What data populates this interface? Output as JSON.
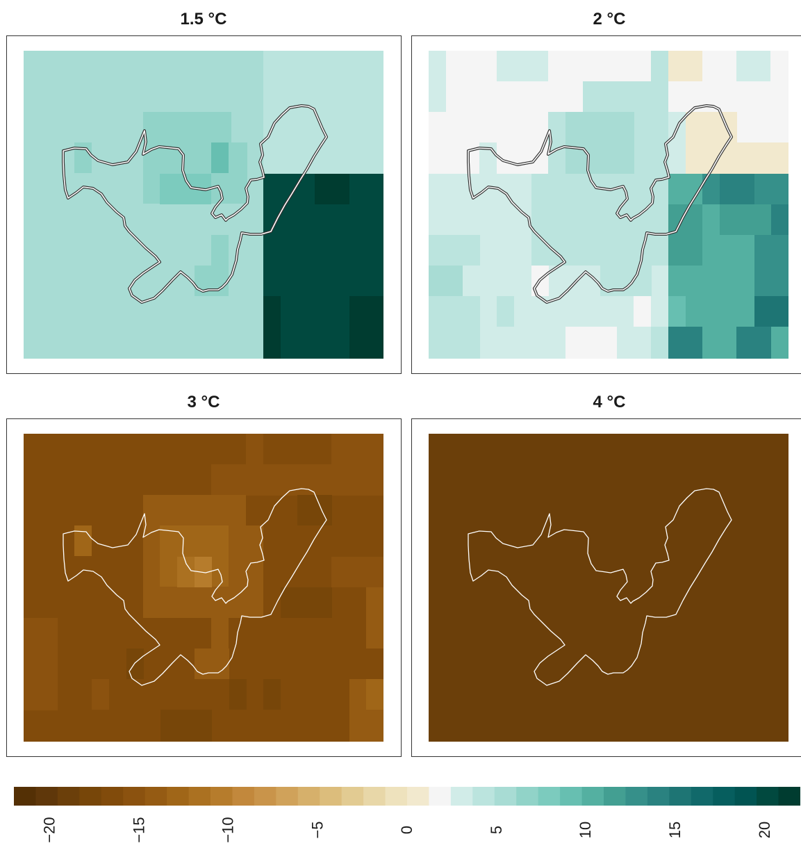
{
  "panels": [
    {
      "title": "1.5 °C"
    },
    {
      "title": "2 °C"
    },
    {
      "title": "3 °C"
    },
    {
      "title": "4 °C"
    }
  ],
  "colorbar": {
    "min": -22,
    "max": 22,
    "ticks": [
      "−20",
      "−15",
      "−10",
      "−5",
      "0",
      "5",
      "10",
      "15",
      "20"
    ],
    "colors": [
      "#543005",
      "#5f370a",
      "#6b3f0a",
      "#774609",
      "#814b0b",
      "#8b520f",
      "#955b13",
      "#a06618",
      "#ab7121",
      "#b67c2c",
      "#c2883c",
      "#c9944a",
      "#d0a25a",
      "#d6b06b",
      "#dcbd7c",
      "#e2cb92",
      "#e8d7a8",
      "#eee2bd",
      "#f2e9ce",
      "#f5f5f5",
      "#d1ece8",
      "#bbe4de",
      "#a8dcd4",
      "#91d3c8",
      "#7ccbbe",
      "#67bfb1",
      "#54b0a1",
      "#439f92",
      "#36908a",
      "#2a8280",
      "#1e7574",
      "#11696a",
      "#065e5e",
      "#015452",
      "#01493f",
      "#003c30"
    ]
  }
}
